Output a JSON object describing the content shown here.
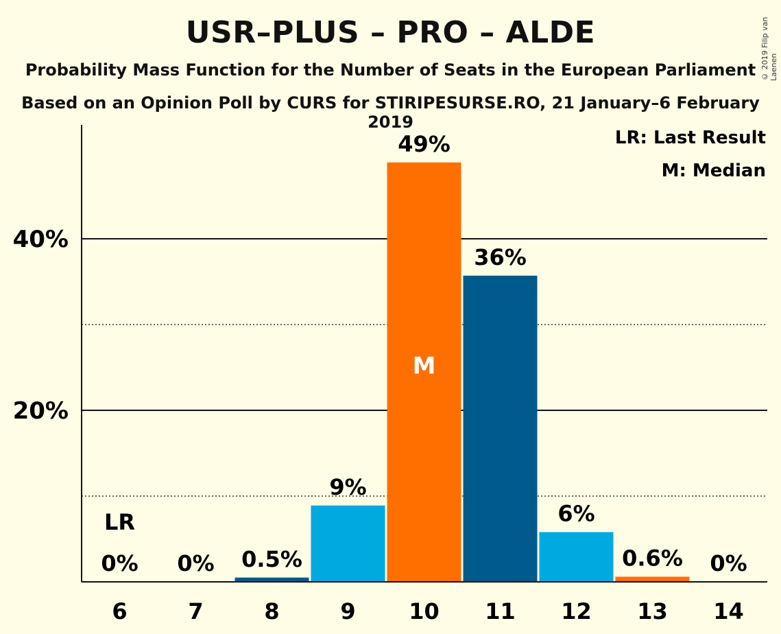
{
  "title": "USR–PLUS – PRO – ALDE",
  "subtitle1": "Probability Mass Function for the Number of Seats in the European Parliament",
  "subtitle2": "Based on an Opinion Poll by CURS for STIRIPESURSE.RO, 21 January–6 February 2019",
  "copyright": "© 2019 Filip van Laenen",
  "legend": {
    "lr": "LR: Last Result",
    "m": "M: Median"
  },
  "chart_data": {
    "type": "bar",
    "categories": [
      "6",
      "7",
      "8",
      "9",
      "10",
      "11",
      "12",
      "13",
      "14"
    ],
    "values": [
      0,
      0,
      0.5,
      9,
      49,
      36,
      6,
      0.6,
      0
    ],
    "heights": [
      0,
      0,
      0.5,
      8.9,
      48.9,
      35.7,
      5.8,
      0.6,
      0
    ],
    "labels": [
      "0%",
      "0%",
      "0.5%",
      "9%",
      "49%",
      "36%",
      "6%",
      "0.6%",
      "0%"
    ],
    "colors": [
      "#00A9E0",
      "#005A8C",
      "#005A8C",
      "#00A9E0",
      "#FF6F00",
      "#005A8C",
      "#00A9E0",
      "#FF6F00",
      "#00A9E0"
    ],
    "ylim": [
      0,
      53
    ],
    "yticks": [
      {
        "value": 20,
        "label": "20%"
      },
      {
        "value": 40,
        "label": "40%"
      }
    ],
    "minor_gridlines": [
      10,
      30
    ],
    "last_result_category": "6",
    "last_result_label": "LR",
    "median_category": "10",
    "median_label": "M",
    "legend_position": "top-right"
  }
}
